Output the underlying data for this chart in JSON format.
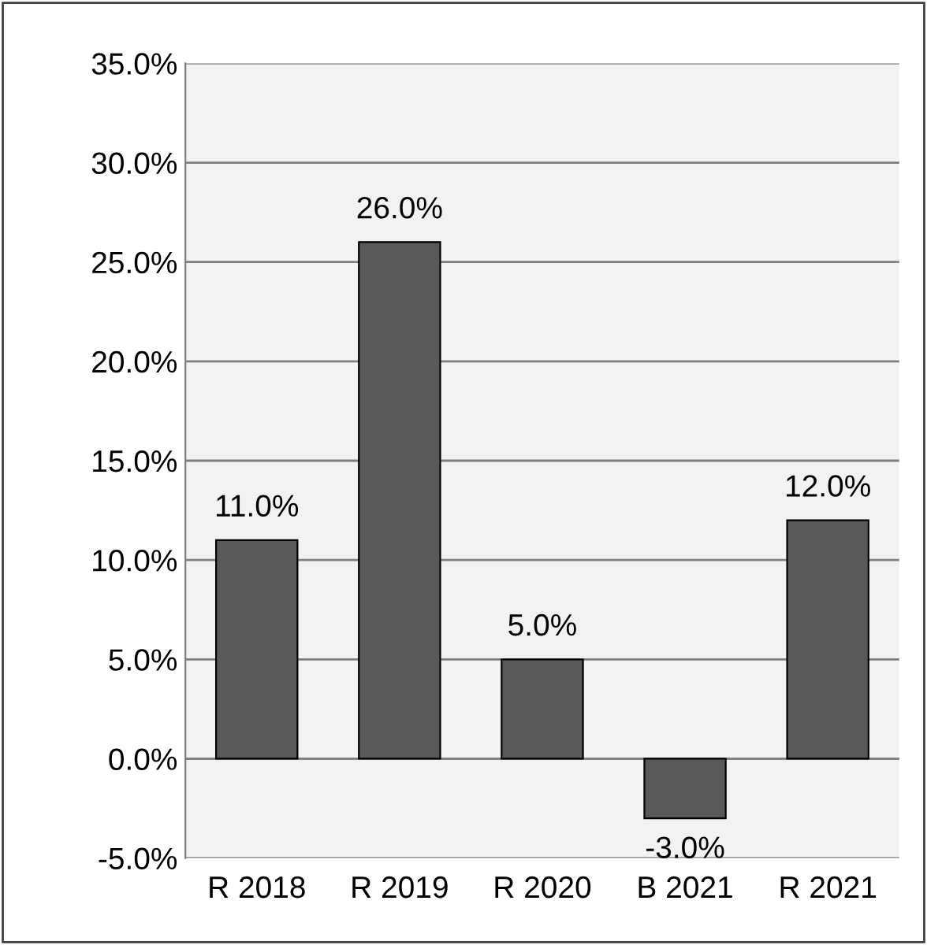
{
  "chart_data": {
    "type": "bar",
    "categories": [
      "R 2018",
      "R 2019",
      "R 2020",
      "B 2021",
      "R 2021"
    ],
    "values": [
      11,
      26,
      5,
      -3,
      12
    ],
    "color": "#595959",
    "value_labels": [
      "11.0%",
      "26.0%",
      "5.0%",
      "-3.0%",
      "12.0%"
    ],
    "ylim": [
      -5,
      35
    ],
    "yticks": [
      {
        "value": -5,
        "label": "-5.0%"
      },
      {
        "value": 0,
        "label": "0.0%"
      },
      {
        "value": 5,
        "label": "5.0%"
      },
      {
        "value": 10,
        "label": "10.0%"
      },
      {
        "value": 15,
        "label": "15.0%"
      },
      {
        "value": 20,
        "label": "20.0%"
      },
      {
        "value": 25,
        "label": "25.0%"
      },
      {
        "value": 30,
        "label": "30.0%"
      },
      {
        "value": 35,
        "label": "35.0%"
      }
    ],
    "grid": "y"
  }
}
